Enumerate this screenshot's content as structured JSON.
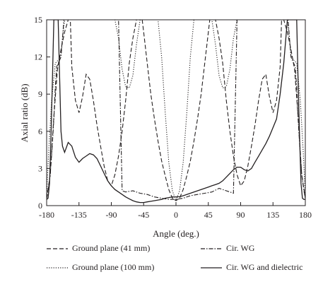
{
  "chart_data": {
    "type": "line",
    "xlabel": "Angle (deg.)",
    "ylabel": "Axial ratio (dB)",
    "xlim": [
      -180,
      180
    ],
    "ylim": [
      0,
      15
    ],
    "xticks": [
      "-180",
      "-135",
      "-90",
      "-45",
      "0",
      "45",
      "90",
      "135",
      "180"
    ],
    "xtick_values": [
      -180,
      -135,
      -90,
      -45,
      0,
      45,
      90,
      135,
      180
    ],
    "yticks": [
      "0",
      "3",
      "6",
      "9",
      "12",
      "15"
    ],
    "ytick_values": [
      0,
      3,
      6,
      9,
      12,
      15
    ],
    "grid": false,
    "legend_position": "bottom",
    "series": [
      {
        "name": "Ground plane (41 mm)",
        "style": "dashed",
        "color": "#231f20",
        "x": [
          -180,
          -175,
          -170,
          -165,
          -160,
          -155,
          -150,
          -147,
          -145,
          -140,
          -135,
          -130,
          -125,
          -120,
          -115,
          -110,
          -105,
          -100,
          -95,
          -90,
          -85,
          -80,
          -75,
          -70,
          -65,
          -60,
          -55,
          -50,
          -47,
          -45,
          -40,
          -35,
          -30,
          -25,
          -20,
          -15,
          -10,
          -5,
          0,
          5,
          10,
          15,
          20,
          25,
          30,
          35,
          40,
          45,
          47,
          50,
          55,
          60,
          65,
          70,
          75,
          80,
          85,
          90,
          95,
          100,
          105,
          110,
          115,
          120,
          125,
          130,
          135,
          140,
          145,
          147,
          150,
          155,
          160,
          165,
          170,
          175,
          180
        ],
        "y": [
          0.6,
          2.5,
          7.2,
          11.0,
          12.6,
          14.0,
          15.0,
          15.0,
          11.2,
          8.5,
          7.5,
          8.8,
          10.6,
          10.2,
          8.5,
          6.5,
          4.8,
          3.2,
          2.0,
          1.6,
          2.5,
          4.0,
          6.0,
          8.5,
          11.5,
          13.5,
          15.0,
          15.0,
          15.0,
          14.0,
          11.5,
          9.0,
          7.0,
          5.2,
          3.6,
          2.4,
          1.3,
          0.6,
          0.4,
          0.6,
          1.3,
          2.4,
          3.6,
          5.2,
          7.0,
          9.0,
          11.5,
          14.0,
          15.0,
          15.0,
          15.0,
          13.5,
          11.5,
          8.5,
          6.0,
          4.0,
          2.5,
          1.6,
          2.0,
          3.2,
          4.8,
          6.5,
          8.5,
          10.2,
          10.6,
          8.8,
          7.5,
          8.5,
          11.2,
          15.0,
          15.0,
          14.0,
          12.6,
          11.0,
          7.2,
          2.5,
          0.6
        ]
      },
      {
        "name": "Ground plane (100 mm)",
        "style": "dotted",
        "color": "#231f20",
        "x": [
          -180,
          -177,
          -173,
          -168,
          -163,
          -160,
          -158,
          -155,
          -150,
          -145,
          -140,
          -135,
          -130,
          -125,
          -120,
          -115,
          -110,
          -105,
          -100,
          -95,
          -90,
          -85,
          -80,
          -75,
          -70,
          -65,
          -60,
          -55,
          -50,
          -45,
          -40,
          -35,
          -30,
          -25,
          -20,
          -15,
          -10,
          -5,
          0,
          5,
          10,
          15,
          20,
          25,
          30,
          35,
          40,
          45,
          50,
          55,
          60,
          65,
          70,
          75,
          80,
          85,
          90,
          95,
          100,
          105,
          110,
          115,
          120,
          125,
          130,
          135,
          140,
          145,
          150,
          155,
          158,
          160,
          163,
          168,
          173,
          177,
          180
        ],
        "y": [
          0.8,
          4.5,
          8.5,
          11.5,
          11.8,
          12.2,
          13.5,
          15.0,
          15.0,
          15.0,
          15.0,
          15.0,
          15.0,
          15.0,
          15.0,
          15.0,
          15.0,
          15.0,
          15.0,
          15.0,
          15.0,
          15.0,
          13.5,
          11.0,
          9.6,
          9.5,
          10.5,
          13.0,
          15.0,
          15.0,
          15.0,
          15.0,
          15.0,
          15.0,
          12.0,
          7.5,
          3.5,
          1.2,
          0.4,
          1.2,
          3.5,
          7.5,
          12.0,
          15.0,
          15.0,
          15.0,
          15.0,
          15.0,
          15.0,
          13.0,
          10.5,
          9.5,
          9.6,
          11.0,
          13.5,
          15.0,
          15.0,
          15.0,
          15.0,
          15.0,
          15.0,
          15.0,
          15.0,
          15.0,
          15.0,
          15.0,
          15.0,
          15.0,
          15.0,
          15.0,
          13.5,
          12.2,
          11.8,
          11.5,
          8.5,
          4.5,
          0.8
        ]
      },
      {
        "name": "Cir. WG",
        "style": "dashdot",
        "color": "#231f20",
        "x": [
          -180,
          -178,
          -175,
          -172,
          -170,
          -168,
          -166,
          -163,
          -160,
          -158,
          -156,
          -154,
          -152,
          -150,
          -145,
          -140,
          -135,
          -130,
          -125,
          -120,
          -115,
          -110,
          -105,
          -100,
          -95,
          -90,
          -85,
          -80,
          -75,
          -70,
          -60,
          -50,
          -40,
          -30,
          -20,
          -10,
          0,
          10,
          20,
          30,
          40,
          50,
          60,
          70,
          75,
          80,
          85,
          90,
          95,
          100,
          105,
          110,
          115,
          120,
          125,
          130,
          135,
          140,
          145,
          150,
          152,
          154,
          156,
          158,
          160,
          163,
          166,
          168,
          170,
          172,
          175,
          178,
          180
        ],
        "y": [
          0.6,
          1.2,
          2.5,
          5.0,
          7.0,
          9.5,
          11.2,
          11.6,
          12.0,
          13.5,
          15.0,
          15.0,
          15.0,
          15.0,
          15.0,
          15.0,
          15.0,
          15.0,
          15.0,
          15.0,
          15.0,
          15.0,
          15.0,
          15.0,
          15.0,
          15.0,
          15.0,
          15.0,
          1.2,
          1.1,
          1.2,
          1.0,
          0.9,
          0.7,
          0.6,
          0.5,
          0.5,
          0.6,
          0.8,
          0.9,
          1.0,
          1.1,
          1.4,
          1.2,
          1.1,
          1.0,
          15.0,
          15.0,
          15.0,
          15.0,
          15.0,
          15.0,
          15.0,
          15.0,
          15.0,
          15.0,
          15.0,
          15.0,
          15.0,
          15.0,
          15.0,
          15.0,
          15.0,
          13.5,
          12.0,
          11.6,
          11.2,
          9.5,
          7.0,
          5.0,
          2.5,
          1.2,
          0.6
        ]
      },
      {
        "name": "Cir. WG and dielectric",
        "style": "solid",
        "color": "#231f20",
        "x": [
          -180,
          -178,
          -176,
          -174,
          -172,
          -170,
          -168,
          -166,
          -164,
          -162,
          -160,
          -158,
          -155,
          -150,
          -145,
          -140,
          -135,
          -130,
          -125,
          -120,
          -115,
          -110,
          -105,
          -100,
          -95,
          -90,
          -85,
          -80,
          -75,
          -70,
          -65,
          -60,
          -55,
          -50,
          -45,
          -40,
          -35,
          -30,
          -25,
          -20,
          -15,
          -10,
          -5,
          0,
          5,
          10,
          15,
          20,
          25,
          30,
          35,
          40,
          45,
          50,
          55,
          60,
          65,
          70,
          75,
          80,
          85,
          90,
          95,
          100,
          105,
          110,
          115,
          120,
          125,
          130,
          135,
          140,
          145,
          150,
          155,
          158,
          160,
          162,
          164,
          166,
          168,
          170,
          172,
          174,
          176,
          178,
          180
        ],
        "y": [
          0.5,
          0.6,
          1.8,
          5.5,
          10.0,
          15.0,
          15.0,
          15.0,
          15.0,
          10.5,
          6.0,
          4.8,
          4.3,
          5.1,
          4.8,
          3.9,
          3.5,
          3.8,
          4.0,
          4.2,
          4.1,
          3.8,
          3.2,
          2.6,
          2.0,
          1.6,
          1.3,
          1.1,
          0.9,
          0.7,
          0.55,
          0.4,
          0.3,
          0.25,
          0.25,
          0.3,
          0.35,
          0.4,
          0.45,
          0.5,
          0.6,
          0.65,
          0.7,
          0.7,
          0.72,
          0.8,
          0.9,
          1.0,
          1.1,
          1.2,
          1.3,
          1.4,
          1.5,
          1.6,
          1.7,
          1.8,
          2.0,
          2.3,
          2.6,
          2.9,
          3.1,
          3.1,
          2.9,
          2.8,
          3.0,
          3.5,
          4.0,
          4.5,
          5.0,
          5.6,
          6.3,
          7.0,
          9.0,
          11.5,
          15.0,
          15.0,
          15.0,
          15.0,
          15.0,
          15.0,
          15.0,
          10.0,
          5.5,
          1.8,
          0.6,
          0.5,
          0.5
        ]
      }
    ]
  }
}
